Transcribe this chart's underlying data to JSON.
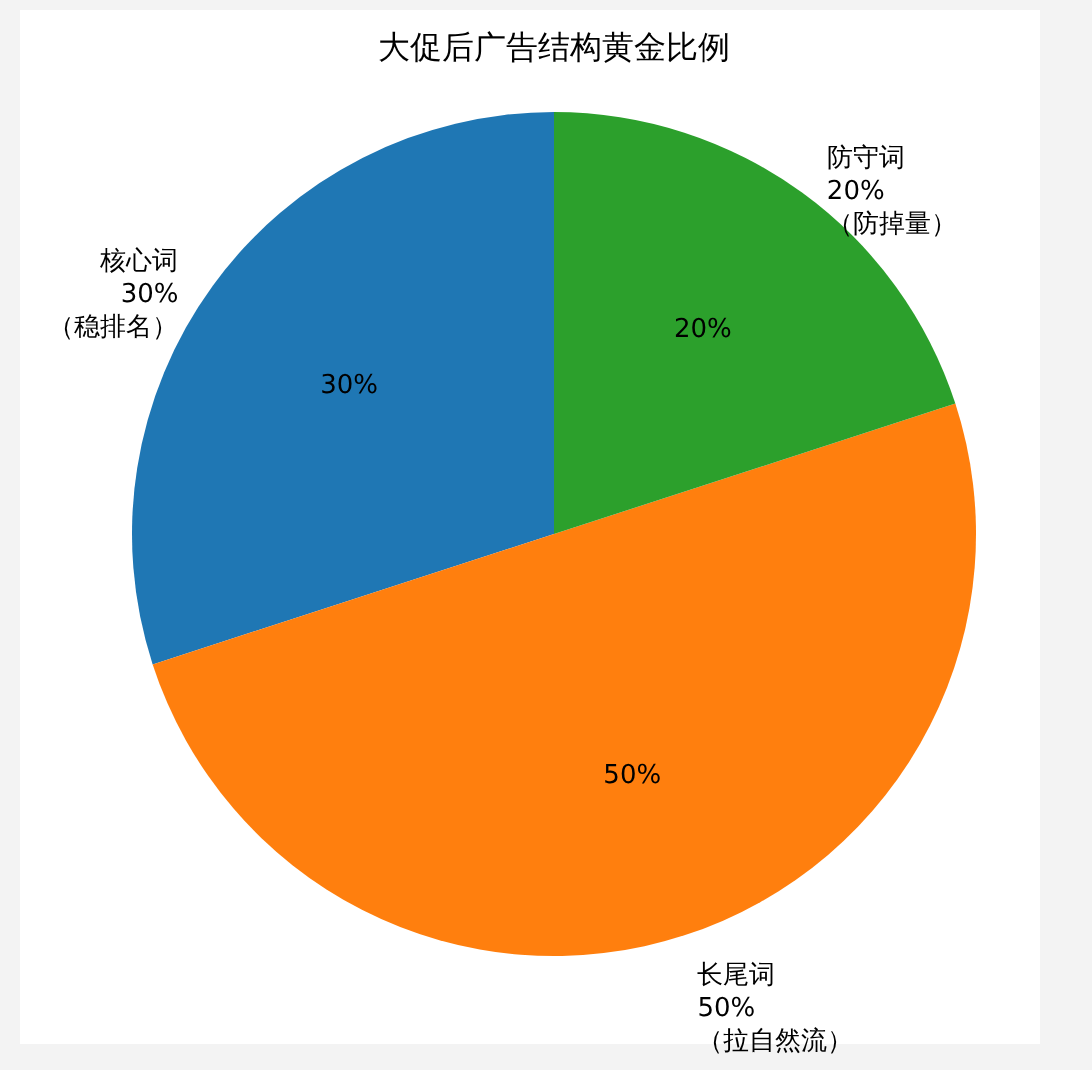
{
  "chart_data": {
    "type": "pie",
    "title": "大促后广告结构黄金比例",
    "categories": [
      "核心词\n30%\n（稳排名）",
      "长尾词\n50%\n（拉自然流）",
      "防守词\n20%\n（防掉量）"
    ],
    "values": [
      30,
      50,
      20
    ],
    "value_labels": [
      "30%",
      "50%",
      "20%"
    ],
    "colors": [
      "#1f77b4",
      "#ff7f0e",
      "#2ca02c"
    ],
    "legend": false
  }
}
